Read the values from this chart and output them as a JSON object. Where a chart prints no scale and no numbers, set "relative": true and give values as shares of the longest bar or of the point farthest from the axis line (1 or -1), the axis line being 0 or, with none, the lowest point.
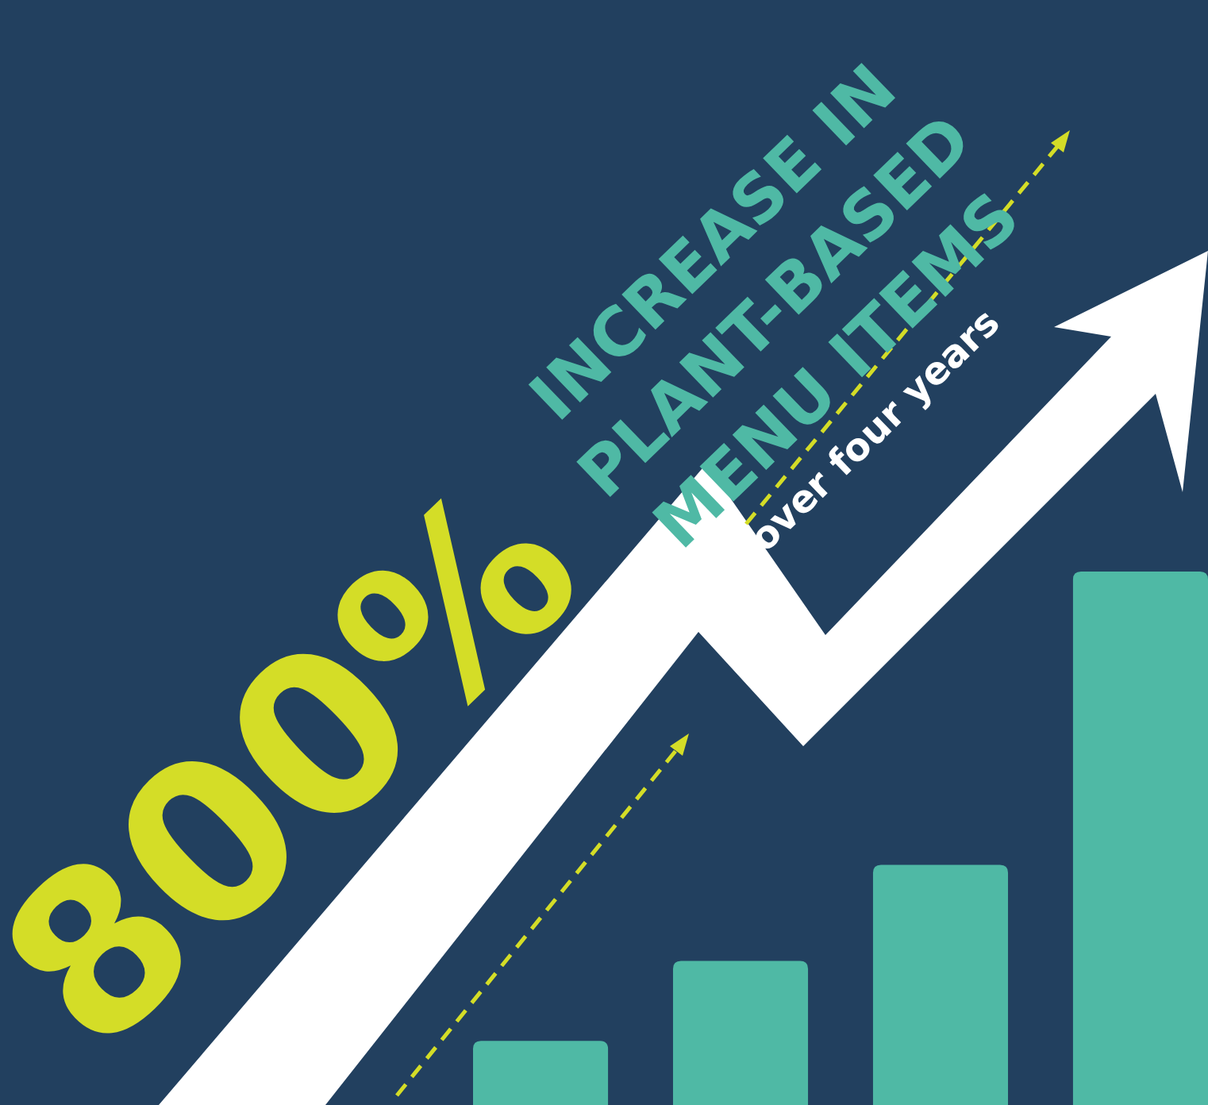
{
  "chart_data": {
    "type": "bar",
    "relative": true,
    "title": "800%",
    "subtitle": "INCREASE IN PLANT-BASED MENU ITEMS",
    "annotations": [
      "over four years"
    ],
    "categories": [
      null,
      null,
      null,
      null
    ],
    "values": [
      0.12,
      0.27,
      0.45,
      1
    ],
    "color": "#4fb9a5"
  }
}
